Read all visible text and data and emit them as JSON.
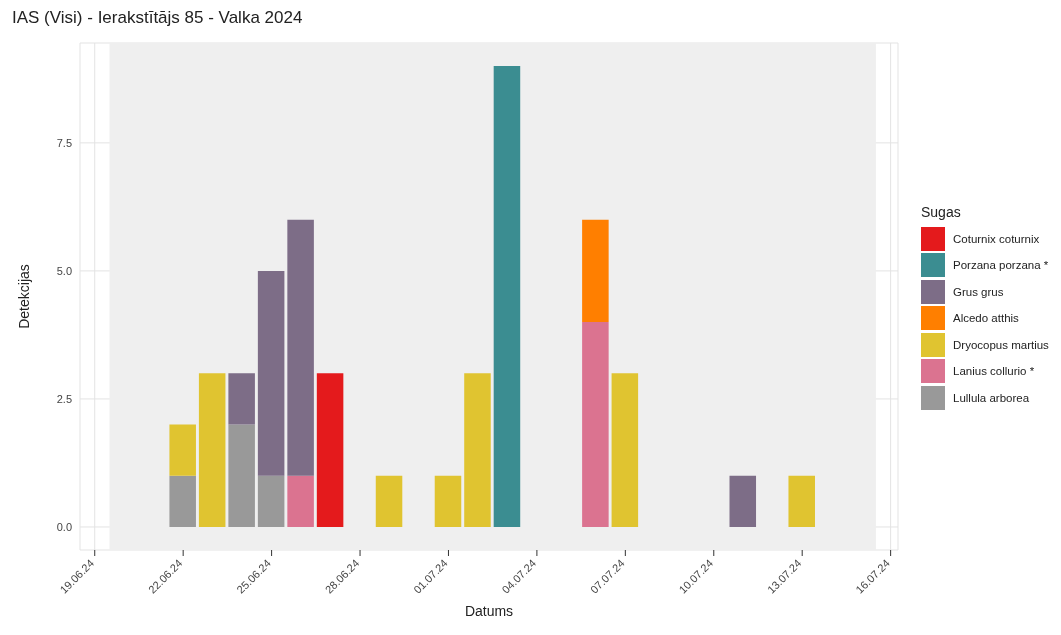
{
  "chart_data": {
    "type": "bar",
    "stacked": true,
    "title": "IAS (Visi) - Ierakstītājs 85 - Valka 2024",
    "xlabel": "Datums",
    "ylabel": "Detekcijas",
    "legend_title": "Sugas",
    "legend": "right",
    "grid": true,
    "x": [
      "2024-06-22",
      "2024-06-23",
      "2024-06-24",
      "2024-06-25",
      "2024-06-26",
      "2024-06-27",
      "2024-06-29",
      "2024-07-01",
      "2024-07-02",
      "2024-07-03",
      "2024-07-06",
      "2024-07-07",
      "2024-07-11",
      "2024-07-13"
    ],
    "series": [
      {
        "name": "Lullula arborea",
        "color": "#999999",
        "values": [
          1,
          null,
          2,
          1,
          null,
          null,
          null,
          null,
          null,
          null,
          null,
          null,
          null,
          null
        ]
      },
      {
        "name": "Lanius collurio *",
        "color": "#db7390",
        "values": [
          null,
          null,
          null,
          null,
          1,
          null,
          null,
          null,
          null,
          null,
          4,
          null,
          null,
          null
        ]
      },
      {
        "name": "Dryocopus martius",
        "color": "#e0c430",
        "values": [
          1,
          3,
          null,
          null,
          null,
          null,
          1,
          1,
          3,
          null,
          null,
          3,
          null,
          1
        ]
      },
      {
        "name": "Alcedo atthis",
        "color": "#ff7f00",
        "values": [
          null,
          null,
          null,
          null,
          null,
          null,
          null,
          null,
          null,
          null,
          2,
          null,
          null,
          null
        ]
      },
      {
        "name": "Grus grus",
        "color": "#7d6d87",
        "values": [
          null,
          null,
          1,
          4,
          5,
          null,
          null,
          null,
          null,
          null,
          null,
          null,
          1,
          null
        ]
      },
      {
        "name": "Porzana porzana *",
        "color": "#3b8d91",
        "values": [
          null,
          null,
          null,
          null,
          null,
          null,
          null,
          null,
          null,
          9,
          null,
          null,
          null,
          null
        ]
      },
      {
        "name": "Coturnix coturnix",
        "color": "#e41a1c",
        "values": [
          null,
          null,
          null,
          null,
          null,
          3,
          null,
          null,
          null,
          null,
          null,
          null,
          null,
          null
        ]
      }
    ],
    "xlim": [
      "2024-06-18T12:00",
      "2024-07-16T06:00"
    ],
    "xticks": [
      {
        "value": "2024-06-19",
        "label": "19.06.24"
      },
      {
        "value": "2024-06-22",
        "label": "22.06.24"
      },
      {
        "value": "2024-06-25",
        "label": "25.06.24"
      },
      {
        "value": "2024-06-28",
        "label": "28.06.24"
      },
      {
        "value": "2024-07-01",
        "label": "01.07.24"
      },
      {
        "value": "2024-07-04",
        "label": "04.07.24"
      },
      {
        "value": "2024-07-07",
        "label": "07.07.24"
      },
      {
        "value": "2024-07-10",
        "label": "10.07.24"
      },
      {
        "value": "2024-07-13",
        "label": "13.07.24"
      },
      {
        "value": "2024-07-16",
        "label": "16.07.24"
      }
    ],
    "ylim": [
      -0.45,
      9.45
    ],
    "yticks": [
      {
        "value": 0,
        "label": "0.0"
      },
      {
        "value": 2.5,
        "label": "2.5"
      },
      {
        "value": 5,
        "label": "5.0"
      },
      {
        "value": 7.5,
        "label": "7.5"
      }
    ],
    "bands": [
      {
        "axis": "x",
        "from": "2024-06-19T12:00",
        "to": "2024-07-15T12:00",
        "color": "#efefef"
      }
    ]
  }
}
